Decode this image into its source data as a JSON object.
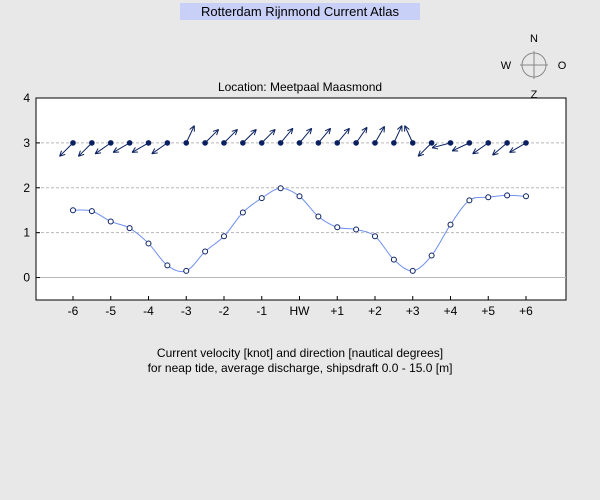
{
  "app_title": "Rotterdam Rijnmond Current Atlas",
  "compass": {
    "n": "N",
    "w": "W",
    "o": "O",
    "z": "Z"
  },
  "caption": {
    "line1": "Current velocity [knot] and direction [nautical degrees]",
    "line2": "for neap tide, average discharge, shipsdraft 0.0 - 15.0 [m]"
  },
  "chart_data": {
    "type": "line",
    "title": "Location: Meetpaal Maasmond",
    "x": [
      -6,
      -5.5,
      -5,
      -4.5,
      -4,
      -3.5,
      -3,
      -2.5,
      -2,
      -1.5,
      -1,
      -0.5,
      0,
      0.5,
      1,
      1.5,
      2,
      2.5,
      3,
      3.5,
      4,
      4.5,
      5,
      5.5,
      6
    ],
    "xticks": [
      -6,
      -5,
      -4,
      -3,
      -2,
      -1,
      0,
      1,
      2,
      3,
      4,
      5,
      6
    ],
    "xtick_labels": [
      "-6",
      "-5",
      "-4",
      "-3",
      "-2",
      "-1",
      "HW",
      "+1",
      "+2",
      "+3",
      "+4",
      "+5",
      "+6"
    ],
    "xlim": [
      -7,
      7
    ],
    "ylim": [
      -0.5,
      4
    ],
    "yticks": [
      0,
      1,
      2,
      3,
      4
    ],
    "grid": "dashed horizontal at 1, 2, 3",
    "velocity_knot": [
      1.5,
      1.48,
      1.25,
      1.1,
      0.76,
      0.27,
      0.15,
      0.58,
      0.92,
      1.45,
      1.77,
      1.99,
      1.81,
      1.36,
      1.12,
      1.07,
      0.92,
      0.4,
      0.15,
      0.49,
      1.18,
      1.72,
      1.79,
      1.83,
      1.81
    ],
    "direction_deg": [
      225,
      225,
      235,
      240,
      240,
      235,
      25,
      45,
      45,
      45,
      45,
      40,
      40,
      40,
      40,
      35,
      30,
      25,
      335,
      225,
      255,
      245,
      235,
      230,
      240
    ],
    "direction_row_y": 3,
    "colors": {
      "velocity_line": "#6f8ff0",
      "markers": "#0a2060",
      "arrows": "#0a2060",
      "grid": "#b8b8b8"
    }
  }
}
